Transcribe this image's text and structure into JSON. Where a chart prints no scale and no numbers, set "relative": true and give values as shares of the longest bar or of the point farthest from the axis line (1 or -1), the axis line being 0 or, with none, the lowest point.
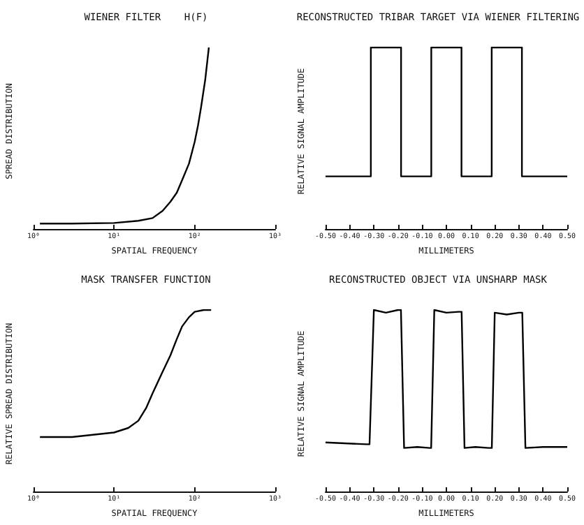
{
  "chart_data": [
    {
      "type": "line",
      "title": "WIENER FILTER    H(F)",
      "xlabel": "SPATIAL FREQUENCY",
      "ylabel": "SPREAD DISTRIBUTION",
      "relative": true,
      "log": "x",
      "xlim": [
        1,
        1000
      ],
      "xticks": [
        {
          "value": 1,
          "label": "10⁰"
        },
        {
          "value": 10,
          "label": "10¹"
        },
        {
          "value": 100,
          "label": "10²"
        },
        {
          "value": 1000,
          "label": "10³"
        }
      ],
      "color": "#000000",
      "marker": "none",
      "x": [
        1.2,
        3,
        10,
        20,
        30,
        40,
        50,
        60,
        70,
        85,
        100,
        110,
        120,
        135,
        150
      ],
      "values": [
        0.03,
        0.03,
        0.033,
        0.045,
        0.06,
        0.1,
        0.15,
        0.2,
        0.27,
        0.36,
        0.48,
        0.57,
        0.67,
        0.82,
        1.0
      ]
    },
    {
      "type": "line",
      "title": "RECONSTRUCTED TRIBAR TARGET VIA WIENER FILTERING",
      "xlabel": "MILLIMETERS",
      "ylabel": "RELATIVE SIGNAL AMPLITUDE",
      "relative": true,
      "xlim": [
        -0.5,
        0.5
      ],
      "xticks": [
        {
          "value": -0.5,
          "label": "-0.50"
        },
        {
          "value": -0.4,
          "label": "-0.40"
        },
        {
          "value": -0.3,
          "label": "-0.30"
        },
        {
          "value": -0.2,
          "label": "-0.20"
        },
        {
          "value": -0.1,
          "label": "-0.10"
        },
        {
          "value": 0,
          "label": "0.00"
        },
        {
          "value": 0.1,
          "label": "0.10"
        },
        {
          "value": 0.2,
          "label": "0.20"
        },
        {
          "value": 0.3,
          "label": "0.30"
        },
        {
          "value": 0.4,
          "label": "0.40"
        },
        {
          "value": 0.5,
          "label": "0.50"
        }
      ],
      "color": "#000000",
      "marker": "none",
      "x": [
        -0.5,
        -0.3125,
        -0.3125,
        -0.1875,
        -0.1875,
        -0.0625,
        -0.0625,
        0.0625,
        0.0625,
        0.1875,
        0.1875,
        0.3125,
        0.3125,
        0.5
      ],
      "values": [
        0.29,
        0.29,
        1,
        1,
        0.29,
        0.29,
        1,
        1,
        0.29,
        0.29,
        1,
        1,
        0.29,
        0.29
      ]
    },
    {
      "type": "line",
      "title": "MASK TRANSFER FUNCTION",
      "xlabel": "SPATIAL FREQUENCY",
      "ylabel": "RELATIVE SPREAD DISTRIBUTION",
      "relative": true,
      "log": "x",
      "xlim": [
        1,
        1000
      ],
      "xticks": [
        {
          "value": 1,
          "label": "10⁰"
        },
        {
          "value": 10,
          "label": "10¹"
        },
        {
          "value": 100,
          "label": "10²"
        },
        {
          "value": 1000,
          "label": "10³"
        }
      ],
      "color": "#000000",
      "marker": "none",
      "x": [
        1.2,
        3,
        10,
        15,
        20,
        25,
        30,
        40,
        50,
        60,
        70,
        85,
        100,
        130,
        160
      ],
      "values": [
        0.3,
        0.3,
        0.325,
        0.35,
        0.39,
        0.46,
        0.54,
        0.66,
        0.75,
        0.84,
        0.91,
        0.96,
        0.99,
        1.0,
        1.0
      ]
    },
    {
      "type": "line",
      "title": "RECONSTRUCTED OBJECT VIA UNSHARP MASK",
      "xlabel": "MILLIMETERS",
      "ylabel": "RELATIVE SIGNAL AMPLITUDE",
      "relative": true,
      "xlim": [
        -0.5,
        0.5
      ],
      "xticks": [
        {
          "value": -0.5,
          "label": "-0.50"
        },
        {
          "value": -0.4,
          "label": "-0.40"
        },
        {
          "value": -0.3,
          "label": "-0.30"
        },
        {
          "value": -0.2,
          "label": "-0.20"
        },
        {
          "value": -0.1,
          "label": "-0.10"
        },
        {
          "value": 0,
          "label": "0.00"
        },
        {
          "value": 0.1,
          "label": "0.10"
        },
        {
          "value": 0.2,
          "label": "0.20"
        },
        {
          "value": 0.3,
          "label": "0.30"
        },
        {
          "value": 0.4,
          "label": "0.40"
        },
        {
          "value": 0.5,
          "label": "0.50"
        }
      ],
      "color": "#000000",
      "marker": "none",
      "x": [
        -0.5,
        -0.33,
        -0.318,
        -0.3,
        -0.25,
        -0.2,
        -0.188,
        -0.175,
        -0.12,
        -0.07,
        -0.063,
        -0.05,
        0,
        0.05,
        0.063,
        0.075,
        0.12,
        0.175,
        0.188,
        0.2,
        0.25,
        0.3,
        0.314,
        0.327,
        0.4,
        0.5
      ],
      "values": [
        0.27,
        0.26,
        0.26,
        1.0,
        0.985,
        1.0,
        1.0,
        0.24,
        0.245,
        0.24,
        0.24,
        1.0,
        0.985,
        0.99,
        0.99,
        0.24,
        0.245,
        0.24,
        0.24,
        0.985,
        0.975,
        0.985,
        0.985,
        0.24,
        0.245,
        0.245
      ]
    }
  ]
}
